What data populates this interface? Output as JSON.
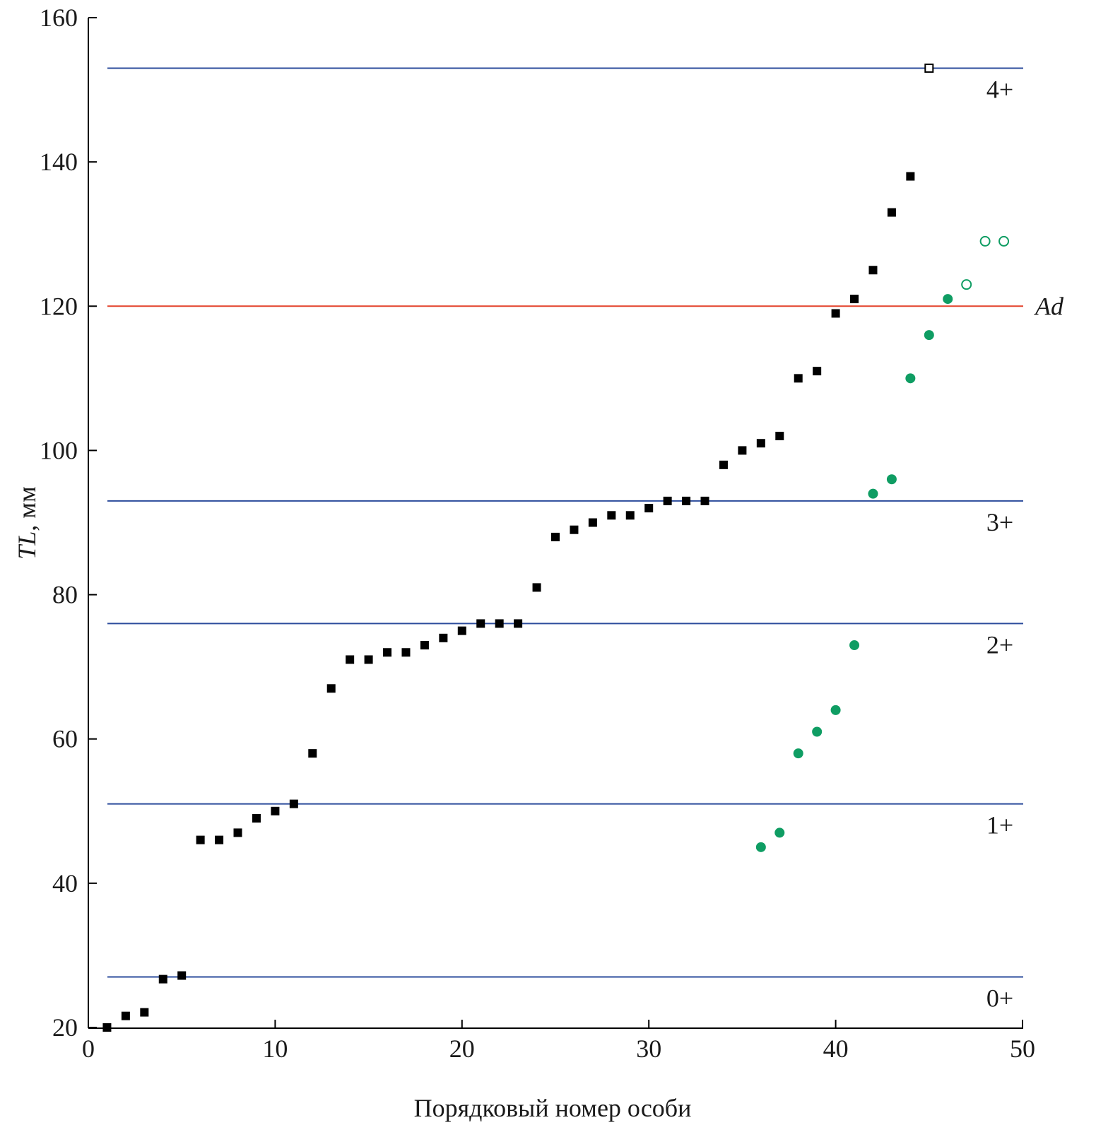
{
  "chart_data": {
    "type": "scatter",
    "title": "",
    "xlabel": "Порядковый номер особи",
    "ylabel_italic": "TL",
    "ylabel_unit": ", мм",
    "xlim": [
      0,
      50
    ],
    "ylim": [
      20,
      160
    ],
    "xticks": [
      0,
      10,
      20,
      30,
      40,
      50
    ],
    "yticks": [
      20,
      40,
      60,
      80,
      100,
      120,
      140,
      160
    ],
    "grid": false,
    "colors": {
      "black": "#000000",
      "green": "#0f9d63",
      "blue_line": "#2c4c9c",
      "red_line": "#e4432c"
    },
    "series": [
      {
        "marker": "filled-square",
        "color": "black",
        "x": [
          1,
          2,
          3,
          4,
          5,
          6,
          7,
          8,
          9,
          10,
          11,
          12,
          13,
          14,
          15,
          16,
          17,
          18,
          19,
          20,
          21,
          22,
          23,
          24,
          25,
          26,
          27,
          28,
          29,
          30,
          31,
          32,
          33,
          34,
          35,
          36,
          37,
          38,
          39,
          40,
          41,
          42,
          43,
          44
        ],
        "y": [
          20,
          21.6,
          22.1,
          26.7,
          27.2,
          46,
          46,
          47,
          49,
          50,
          51,
          58,
          67,
          71,
          71,
          72,
          72,
          73,
          74,
          75,
          76,
          76,
          76,
          81,
          88,
          89,
          90,
          91,
          91,
          92,
          93,
          93,
          93,
          98,
          100,
          101,
          102,
          110,
          111,
          119,
          121,
          125,
          133,
          138
        ]
      },
      {
        "marker": "open-square",
        "color": "black",
        "x": [
          45
        ],
        "y": [
          153
        ]
      },
      {
        "marker": "filled-circle",
        "color": "green",
        "x": [
          36,
          37,
          38,
          39,
          40,
          41,
          42,
          43,
          44,
          45,
          46
        ],
        "y": [
          45,
          47,
          58,
          61,
          64,
          73,
          94,
          96,
          110,
          116,
          121
        ]
      },
      {
        "marker": "open-circle",
        "color": "green",
        "x": [
          47,
          48,
          49
        ],
        "y": [
          123,
          129,
          129
        ]
      }
    ],
    "hlines": [
      {
        "y": 153,
        "label": "4+",
        "color": "blue_line"
      },
      {
        "y": 120,
        "label": "Ad",
        "color": "red_line",
        "italic": true
      },
      {
        "y": 93,
        "label": "3+",
        "color": "blue_line"
      },
      {
        "y": 76,
        "label": "2+",
        "color": "blue_line"
      },
      {
        "y": 51,
        "label": "1+",
        "color": "blue_line"
      },
      {
        "y": 27,
        "label": "0+",
        "color": "blue_line"
      }
    ]
  }
}
